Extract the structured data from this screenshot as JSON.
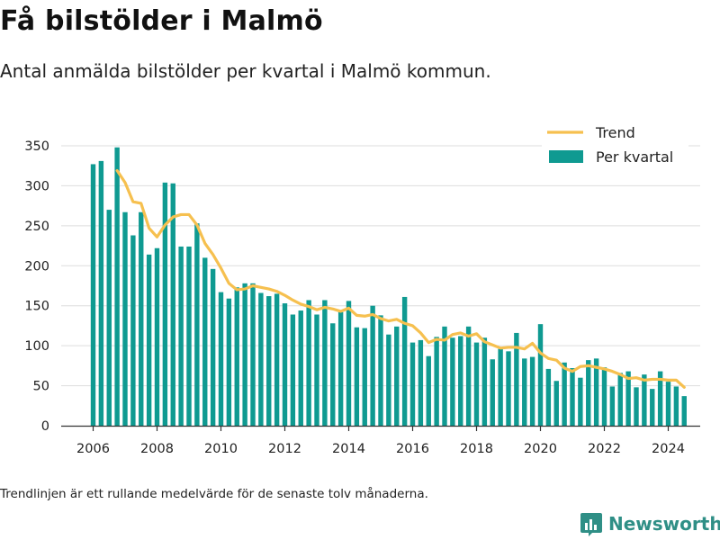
{
  "header": {
    "title": "Få bilstölder i Malmö",
    "subtitle": "Antal anmälda bilstölder per kvartal i Malmö kommun."
  },
  "footnote": "Trendlinjen är ett rullande medelvärde för de senaste tolv månaderna.",
  "brand": {
    "name": "Newsworthy",
    "logo_icon": "bar-chart-icon",
    "color": "#2f8f86"
  },
  "colors": {
    "bars": "#0f9a91",
    "trend": "#f6c04f",
    "grid": "#dddddd",
    "axis": "#333333"
  },
  "chart_data": {
    "type": "bar",
    "title": "",
    "xlabel": "",
    "ylabel": "",
    "ylim": [
      0,
      350
    ],
    "yticks": [
      0,
      50,
      100,
      150,
      200,
      250,
      300,
      350
    ],
    "xticks": [
      "2006",
      "2008",
      "2010",
      "2012",
      "2014",
      "2016",
      "2018",
      "2020",
      "2022",
      "2024"
    ],
    "xlim": [
      2005.0,
      2025.0
    ],
    "grid": true,
    "legend_position": "top-right",
    "legend": [
      "Trend",
      "Per kvartal"
    ],
    "x": [
      2006.0,
      2006.25,
      2006.5,
      2006.75,
      2007.0,
      2007.25,
      2007.5,
      2007.75,
      2008.0,
      2008.25,
      2008.5,
      2008.75,
      2009.0,
      2009.25,
      2009.5,
      2009.75,
      2010.0,
      2010.25,
      2010.5,
      2010.75,
      2011.0,
      2011.25,
      2011.5,
      2011.75,
      2012.0,
      2012.25,
      2012.5,
      2012.75,
      2013.0,
      2013.25,
      2013.5,
      2013.75,
      2014.0,
      2014.25,
      2014.5,
      2014.75,
      2015.0,
      2015.25,
      2015.5,
      2015.75,
      2016.0,
      2016.25,
      2016.5,
      2016.75,
      2017.0,
      2017.25,
      2017.5,
      2017.75,
      2018.0,
      2018.25,
      2018.5,
      2018.75,
      2019.0,
      2019.25,
      2019.5,
      2019.75,
      2020.0,
      2020.25,
      2020.5,
      2020.75,
      2021.0,
      2021.25,
      2021.5,
      2021.75,
      2022.0,
      2022.25,
      2022.5,
      2022.75,
      2023.0,
      2023.25,
      2023.5,
      2023.75,
      2024.0,
      2024.25,
      2024.5
    ],
    "series": [
      {
        "name": "Per kvartal",
        "kind": "bar",
        "values": [
          327,
          331,
          270,
          348,
          267,
          238,
          267,
          214,
          222,
          304,
          303,
          224,
          224,
          253,
          210,
          196,
          167,
          159,
          173,
          178,
          178,
          166,
          162,
          165,
          153,
          139,
          144,
          157,
          139,
          157,
          128,
          142,
          156,
          123,
          122,
          150,
          138,
          114,
          124,
          161,
          104,
          107,
          87,
          111,
          124,
          110,
          112,
          124,
          104,
          110,
          83,
          96,
          93,
          116,
          84,
          86,
          127,
          71,
          56,
          79,
          72,
          60,
          82,
          84,
          73,
          49,
          66,
          68,
          48,
          64,
          46,
          68,
          55,
          49,
          37
        ]
      },
      {
        "name": "Trend",
        "kind": "line",
        "x": [
          2006.75,
          2007.0,
          2007.25,
          2007.5,
          2007.75,
          2008.0,
          2008.25,
          2008.5,
          2008.75,
          2009.0,
          2009.25,
          2009.5,
          2009.75,
          2010.0,
          2010.25,
          2010.5,
          2010.75,
          2011.0,
          2011.25,
          2011.5,
          2011.75,
          2012.0,
          2012.25,
          2012.5,
          2012.75,
          2013.0,
          2013.25,
          2013.5,
          2013.75,
          2014.0,
          2014.25,
          2014.5,
          2014.75,
          2015.0,
          2015.25,
          2015.5,
          2015.75,
          2016.0,
          2016.25,
          2016.5,
          2016.75,
          2017.0,
          2017.25,
          2017.5,
          2017.75,
          2018.0,
          2018.25,
          2018.5,
          2018.75,
          2019.0,
          2019.25,
          2019.5,
          2019.75,
          2020.0,
          2020.25,
          2020.5,
          2020.75,
          2021.0,
          2021.25,
          2021.5,
          2021.75,
          2022.0,
          2022.25,
          2022.5,
          2022.75,
          2023.0,
          2023.25,
          2023.5,
          2023.75,
          2024.0,
          2024.25,
          2024.5
        ],
        "values": [
          319,
          304,
          280,
          278,
          247,
          236,
          251,
          261,
          264,
          264,
          251,
          228,
          214,
          197,
          178,
          170,
          171,
          175,
          173,
          171,
          168,
          163,
          157,
          152,
          149,
          145,
          148,
          146,
          143,
          147,
          138,
          137,
          139,
          134,
          131,
          133,
          128,
          125,
          116,
          104,
          108,
          107,
          114,
          116,
          112,
          115,
          105,
          101,
          97,
          98,
          98,
          96,
          103,
          91,
          84,
          82,
          72,
          68,
          74,
          75,
          73,
          71,
          68,
          64,
          59,
          60,
          57,
          58,
          58,
          57,
          57,
          48
        ]
      }
    ]
  }
}
